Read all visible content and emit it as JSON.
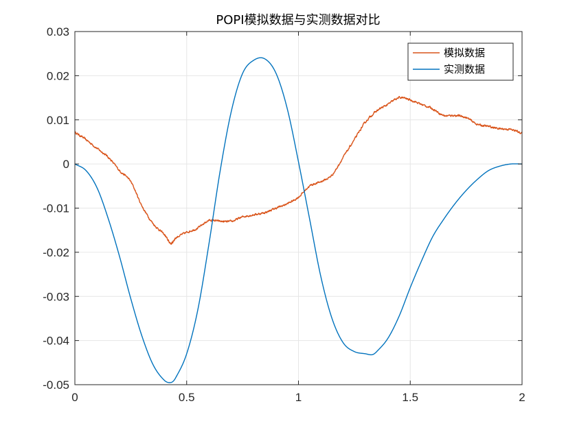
{
  "chart_data": {
    "type": "line",
    "title": "POPI模拟数据与实测数据对比",
    "xlabel": "",
    "ylabel": "",
    "xlim": [
      0,
      2
    ],
    "ylim": [
      -0.05,
      0.03
    ],
    "xticks": [
      0,
      0.5,
      1,
      1.5,
      2
    ],
    "xtick_labels": [
      "0",
      "0.5",
      "1",
      "1.5",
      "2"
    ],
    "yticks": [
      -0.05,
      -0.04,
      -0.03,
      -0.02,
      -0.01,
      0,
      0.01,
      0.02,
      0.03
    ],
    "ytick_labels": [
      "-0.05",
      "-0.04",
      "-0.03",
      "-0.02",
      "-0.01",
      "0",
      "0.01",
      "0.02",
      "0.03"
    ],
    "grid": true,
    "legend_position": "top-right",
    "series": [
      {
        "name": "模拟数据",
        "color": "#D95319",
        "x": [
          0,
          0.05,
          0.1,
          0.15,
          0.2,
          0.25,
          0.3,
          0.35,
          0.4,
          0.43,
          0.45,
          0.5,
          0.55,
          0.6,
          0.65,
          0.7,
          0.75,
          0.8,
          0.85,
          0.9,
          0.95,
          1.0,
          1.05,
          1.1,
          1.15,
          1.2,
          1.25,
          1.3,
          1.35,
          1.4,
          1.45,
          1.5,
          1.55,
          1.6,
          1.65,
          1.7,
          1.75,
          1.8,
          1.85,
          1.9,
          1.95,
          2.0
        ],
        "y": [
          0.0072,
          0.0055,
          0.0035,
          0.0015,
          -0.0015,
          -0.004,
          -0.0095,
          -0.0135,
          -0.016,
          -0.018,
          -0.0168,
          -0.0155,
          -0.0145,
          -0.0128,
          -0.013,
          -0.013,
          -0.012,
          -0.0115,
          -0.011,
          -0.01,
          -0.009,
          -0.0075,
          -0.005,
          -0.004,
          -0.0025,
          0.0015,
          0.0055,
          0.0095,
          0.012,
          0.0135,
          0.015,
          0.0145,
          0.0135,
          0.0125,
          0.011,
          0.011,
          0.0105,
          0.009,
          0.0085,
          0.008,
          0.0078,
          0.007
        ]
      },
      {
        "name": "实测数据",
        "color": "#0072BD",
        "x": [
          0,
          0.05,
          0.1,
          0.15,
          0.2,
          0.25,
          0.3,
          0.35,
          0.4,
          0.43,
          0.45,
          0.5,
          0.55,
          0.6,
          0.65,
          0.7,
          0.75,
          0.8,
          0.85,
          0.9,
          0.95,
          1.0,
          1.05,
          1.1,
          1.15,
          1.2,
          1.25,
          1.3,
          1.33,
          1.35,
          1.4,
          1.45,
          1.5,
          1.55,
          1.6,
          1.65,
          1.7,
          1.75,
          1.8,
          1.85,
          1.9,
          1.95,
          2.0
        ],
        "y": [
          0,
          -0.0015,
          -0.0055,
          -0.0125,
          -0.021,
          -0.0305,
          -0.039,
          -0.0455,
          -0.049,
          -0.0495,
          -0.0485,
          -0.043,
          -0.033,
          -0.018,
          -0.0015,
          0.012,
          0.0205,
          0.0235,
          0.0238,
          0.0205,
          0.0125,
          0.0005,
          -0.0125,
          -0.0255,
          -0.035,
          -0.0405,
          -0.0425,
          -0.043,
          -0.0432,
          -0.0425,
          -0.0395,
          -0.0345,
          -0.028,
          -0.022,
          -0.0165,
          -0.0125,
          -0.009,
          -0.006,
          -0.0035,
          -0.0015,
          -0.0005,
          0.0,
          0.0
        ]
      }
    ]
  }
}
